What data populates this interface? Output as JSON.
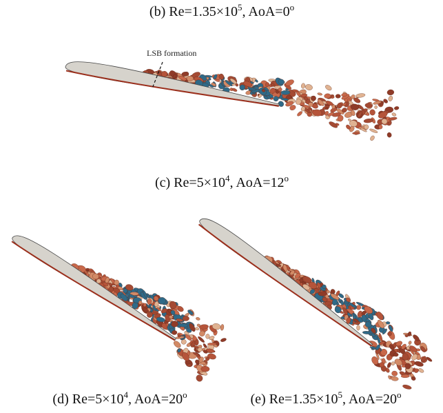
{
  "figure": {
    "annotation": "LSB formation",
    "panels": [
      {
        "caption": [
          {
            "text": "(b)  Re=1.35×10"
          },
          {
            "sup": "5"
          },
          {
            "text": ", AoA=0"
          },
          {
            "sup": "o"
          }
        ]
      },
      {
        "caption": [
          {
            "text": "(c)  Re=5×10"
          },
          {
            "sup": "4"
          },
          {
            "text": ", AoA=12"
          },
          {
            "sup": "o"
          }
        ]
      },
      {
        "caption": [
          {
            "text": "(d) Re=5×10"
          },
          {
            "sup": "4"
          },
          {
            "text": ", AoA=20"
          },
          {
            "sup": "o"
          }
        ]
      },
      {
        "caption": [
          {
            "text": "(e) Re=1.35×10"
          },
          {
            "sup": "5"
          },
          {
            "text": ", AoA=20"
          },
          {
            "sup": "o"
          }
        ]
      }
    ]
  }
}
